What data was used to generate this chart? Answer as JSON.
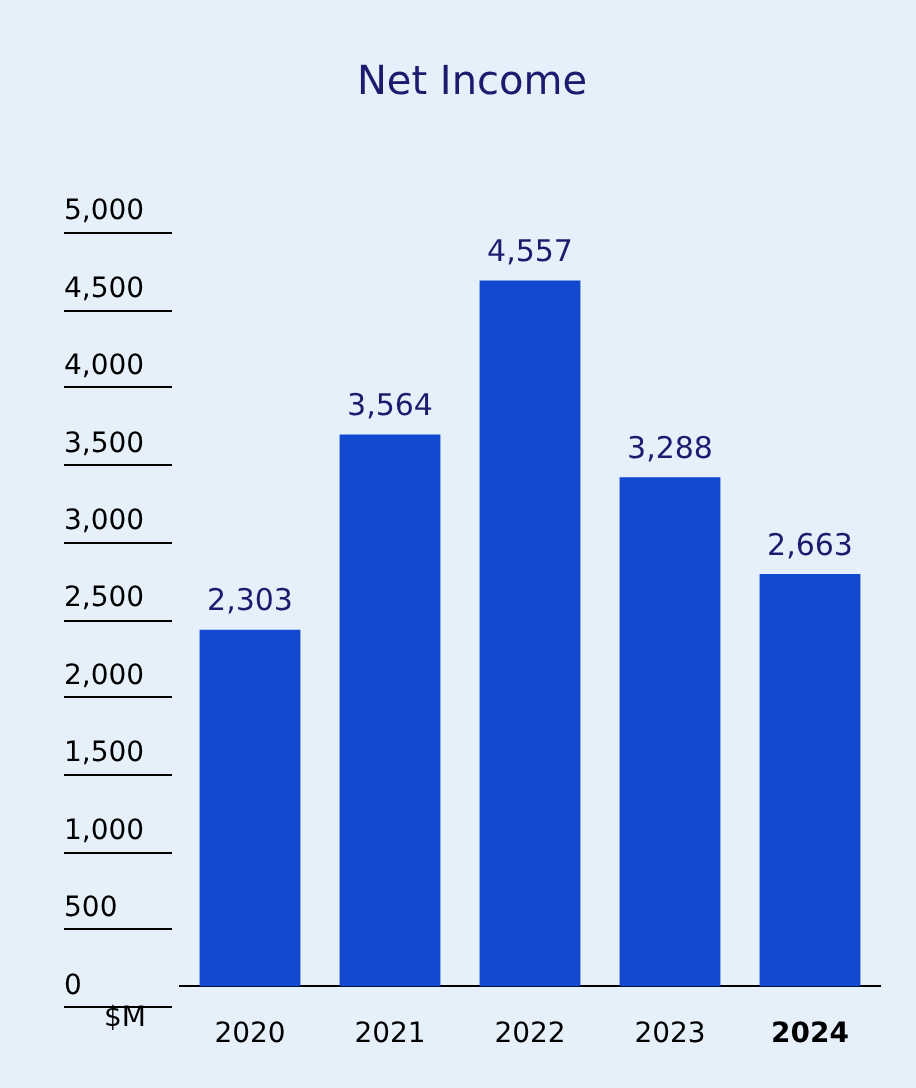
{
  "chart_data": {
    "type": "bar",
    "title": "Net Income",
    "ylabel": "$M",
    "categories": [
      "2020",
      "2021",
      "2022",
      "2023",
      "2024"
    ],
    "values": [
      2303,
      3564,
      4557,
      3288,
      2663
    ],
    "color": "#1149d1",
    "ylim": [
      0,
      5000
    ],
    "yticks": [
      {
        "value": 0,
        "label": "0"
      },
      {
        "value": 500,
        "label": "500"
      },
      {
        "value": 1000,
        "label": "1,000"
      },
      {
        "value": 1500,
        "label": "1,500"
      },
      {
        "value": 2000,
        "label": "2,000"
      },
      {
        "value": 2500,
        "label": "2,500"
      },
      {
        "value": 3000,
        "label": "3,000"
      },
      {
        "value": 3500,
        "label": "3,500"
      },
      {
        "value": 4000,
        "label": "4,000"
      },
      {
        "value": 4500,
        "label": "4,500"
      },
      {
        "value": 5000,
        "label": "5,000"
      }
    ],
    "value_labels": [
      "2,303",
      "3,564",
      "4,557",
      "3,288",
      "2,663"
    ],
    "grid": false,
    "legend": false
  }
}
